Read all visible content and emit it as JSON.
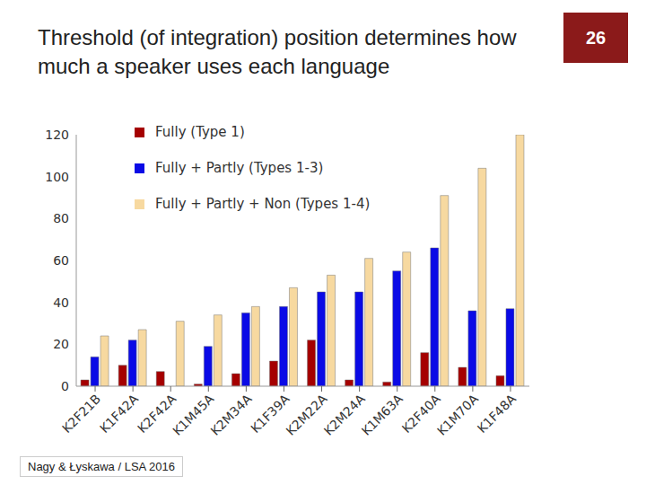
{
  "chart_data": {
    "type": "bar",
    "title": "Threshold (of integration) position determines how much a speaker uses each language",
    "annotations": [
      "26",
      "Nagy & Łyskawa / LSA 2016"
    ],
    "categories": [
      "K2F21B",
      "K1F42A",
      "K2F42A",
      "K1M45A",
      "K2M34A",
      "K1F39A",
      "K2M22A",
      "K2M24A",
      "K1M63A",
      "K2F40A",
      "K1M70A",
      "K1F48A"
    ],
    "series": [
      {
        "name": "Fully (Type 1)",
        "color": "#a50000",
        "values": [
          3,
          10,
          7,
          1,
          6,
          12,
          22,
          3,
          2,
          16,
          9,
          5
        ]
      },
      {
        "name": "Fully + Partly (Types 1-3)",
        "color": "#0a0ae6",
        "values": [
          14,
          22,
          null,
          19,
          35,
          38,
          45,
          45,
          55,
          66,
          36,
          37
        ]
      },
      {
        "name": "Fully + Partly + Non (Types 1-4)",
        "color": "#f7d9a0",
        "values": [
          24,
          27,
          31,
          34,
          38,
          47,
          53,
          61,
          64,
          91,
          104,
          120
        ]
      }
    ],
    "ylim": [
      0,
      120
    ],
    "yticks": [
      0,
      20,
      40,
      60,
      80,
      100,
      120
    ],
    "grid": false,
    "legend": "upper left"
  }
}
